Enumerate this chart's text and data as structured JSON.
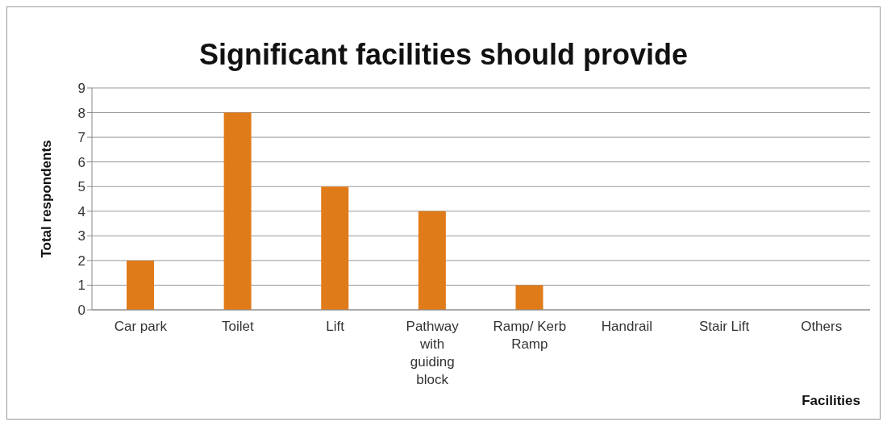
{
  "chart_data": {
    "type": "bar",
    "title": "Significant facilities should provide",
    "xlabel": "Facilities",
    "ylabel": "Total respondents",
    "categories": [
      "Car park",
      "Toilet",
      "Lift",
      "Pathway with guiding block",
      "Ramp/ Kerb Ramp",
      "Handrail",
      "Stair Lift",
      "Others"
    ],
    "values": [
      2,
      8,
      5,
      4,
      1,
      0,
      0,
      0
    ],
    "color": "#e07b1a",
    "ylim": [
      0,
      9
    ],
    "yticks": [
      0,
      1,
      2,
      3,
      4,
      5,
      6,
      7,
      8,
      9
    ],
    "grid": "y",
    "legend": false
  }
}
